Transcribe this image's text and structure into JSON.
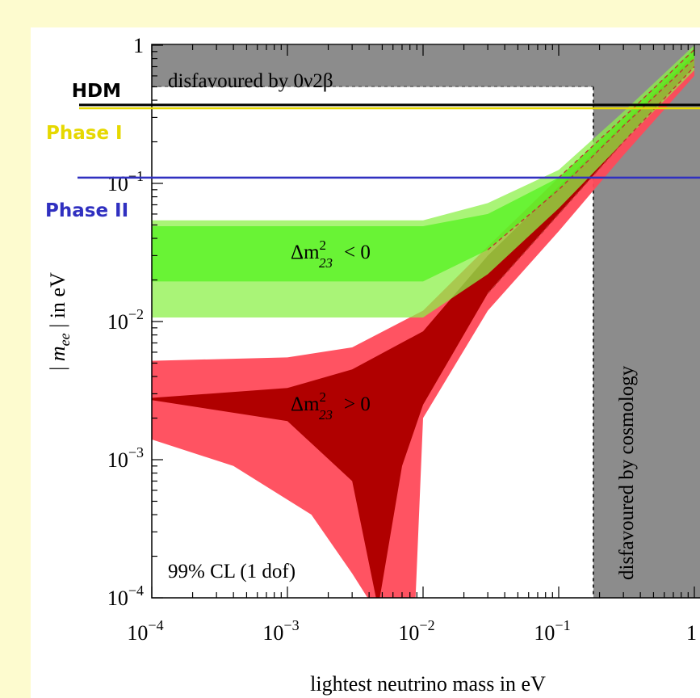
{
  "chart_data": {
    "type": "area",
    "xlabel": "lightest neutrino mass in eV",
    "ylabel_parts": {
      "pre": "| ",
      "m": "m",
      "sub": "ee",
      "post": " |  in eV"
    },
    "x_scale": "log",
    "y_scale": "log",
    "xlim": [
      0.0001,
      1
    ],
    "ylim": [
      0.0001,
      1
    ],
    "x_ticks": [
      {
        "v": 0.0001,
        "base": "10",
        "exp": "−4"
      },
      {
        "v": 0.001,
        "base": "10",
        "exp": "−3"
      },
      {
        "v": 0.01,
        "base": "10",
        "exp": "−2"
      },
      {
        "v": 0.1,
        "base": "10",
        "exp": "−1"
      },
      {
        "v": 1,
        "base": "1",
        "exp": ""
      }
    ],
    "y_ticks": [
      {
        "v": 0.0001,
        "base": "10",
        "exp": "−4"
      },
      {
        "v": 0.001,
        "base": "10",
        "exp": "−3"
      },
      {
        "v": 0.01,
        "base": "10",
        "exp": "−2"
      },
      {
        "v": 0.1,
        "base": "10",
        "exp": "−1"
      },
      {
        "v": 1,
        "base": "1",
        "exp": ""
      }
    ],
    "series": [
      {
        "name": "Δm²₂₃ < 0",
        "label": {
          "pre": "Δm",
          "sup": "2",
          "sub": "23",
          "rel": "<  0"
        },
        "color": "#4ef21a",
        "band_color": "#8cf04a",
        "outer_lower": [
          [
            0.0001,
            0.0107
          ],
          [
            0.01,
            0.0107
          ],
          [
            0.03,
            0.022
          ],
          [
            0.1,
            0.066
          ],
          [
            0.3,
            0.2
          ],
          [
            1,
            0.66
          ]
        ],
        "outer_upper": [
          [
            0.0001,
            0.054
          ],
          [
            0.01,
            0.054
          ],
          [
            0.03,
            0.072
          ],
          [
            0.1,
            0.125
          ],
          [
            0.3,
            0.33
          ],
          [
            1,
            1
          ]
        ],
        "inner_lower": [
          [
            0.0001,
            0.0195
          ],
          [
            0.01,
            0.0195
          ],
          [
            0.03,
            0.033
          ],
          [
            0.1,
            0.09
          ],
          [
            0.3,
            0.26
          ],
          [
            1,
            0.8
          ]
        ],
        "inner_upper": [
          [
            0.0001,
            0.049
          ],
          [
            0.01,
            0.049
          ],
          [
            0.03,
            0.06
          ],
          [
            0.1,
            0.11
          ],
          [
            0.3,
            0.3
          ],
          [
            1,
            0.95
          ]
        ]
      },
      {
        "name": "Δm²₂₃ > 0",
        "label": {
          "pre": "Δm",
          "sup": "2",
          "sub": "23",
          "rel": ">  0"
        },
        "color": "#b00000",
        "band_color": "#ff4a5a",
        "outer_lower": [
          [
            0.0001,
            0.0014
          ],
          [
            0.0004,
            0.0009
          ],
          [
            0.0015,
            0.0004
          ],
          [
            0.003,
            0.00015
          ],
          [
            0.0039,
            0.0001
          ],
          [
            0.0088,
            0.0001
          ],
          [
            0.01,
            0.002
          ],
          [
            0.03,
            0.012
          ],
          [
            0.1,
            0.045
          ],
          [
            0.3,
            0.16
          ],
          [
            1,
            0.6
          ]
        ],
        "outer_upper": [
          [
            0.0001,
            0.0052
          ],
          [
            0.001,
            0.0055
          ],
          [
            0.003,
            0.0065
          ],
          [
            0.01,
            0.012
          ],
          [
            0.03,
            0.035
          ],
          [
            0.1,
            0.11
          ],
          [
            0.3,
            0.3
          ],
          [
            1,
            0.93
          ]
        ],
        "inner_lower": [
          [
            0.0001,
            0.0027
          ],
          [
            0.001,
            0.0019
          ],
          [
            0.003,
            0.0007
          ],
          [
            0.0045,
            0.0001
          ],
          [
            0.0048,
            0.0001
          ],
          [
            0.007,
            0.0009
          ],
          [
            0.01,
            0.0025
          ],
          [
            0.03,
            0.016
          ],
          [
            0.1,
            0.06
          ],
          [
            0.3,
            0.2
          ],
          [
            1,
            0.7
          ]
        ],
        "inner_upper": [
          [
            0.0001,
            0.0028
          ],
          [
            0.001,
            0.0033
          ],
          [
            0.003,
            0.0045
          ],
          [
            0.01,
            0.0085
          ],
          [
            0.03,
            0.03
          ],
          [
            0.1,
            0.095
          ],
          [
            0.3,
            0.27
          ],
          [
            1,
            0.86
          ]
        ]
      }
    ],
    "excluded_regions": [
      {
        "name": "disfavoured-by-0v2b",
        "label": "disfavoured by 0ν2β",
        "y_min": 0.5,
        "x_max": 0.18,
        "color": "#8c8c8c"
      },
      {
        "name": "disfavoured-by-cosmology",
        "label": "disfavoured by cosmology",
        "x_min": 0.18,
        "color": "#8c8c8c"
      }
    ],
    "reference_lines": [
      {
        "name": "HDM",
        "label": "HDM",
        "y": 0.37,
        "color": "#000000"
      },
      {
        "name": "Phase I",
        "label": "Phase I",
        "y": 0.35,
        "color": "#e6d800"
      },
      {
        "name": "Phase II",
        "label": "Phase II",
        "y": 0.11,
        "color": "#3030c0"
      }
    ],
    "annotation": "99% CL (1 dof)"
  }
}
